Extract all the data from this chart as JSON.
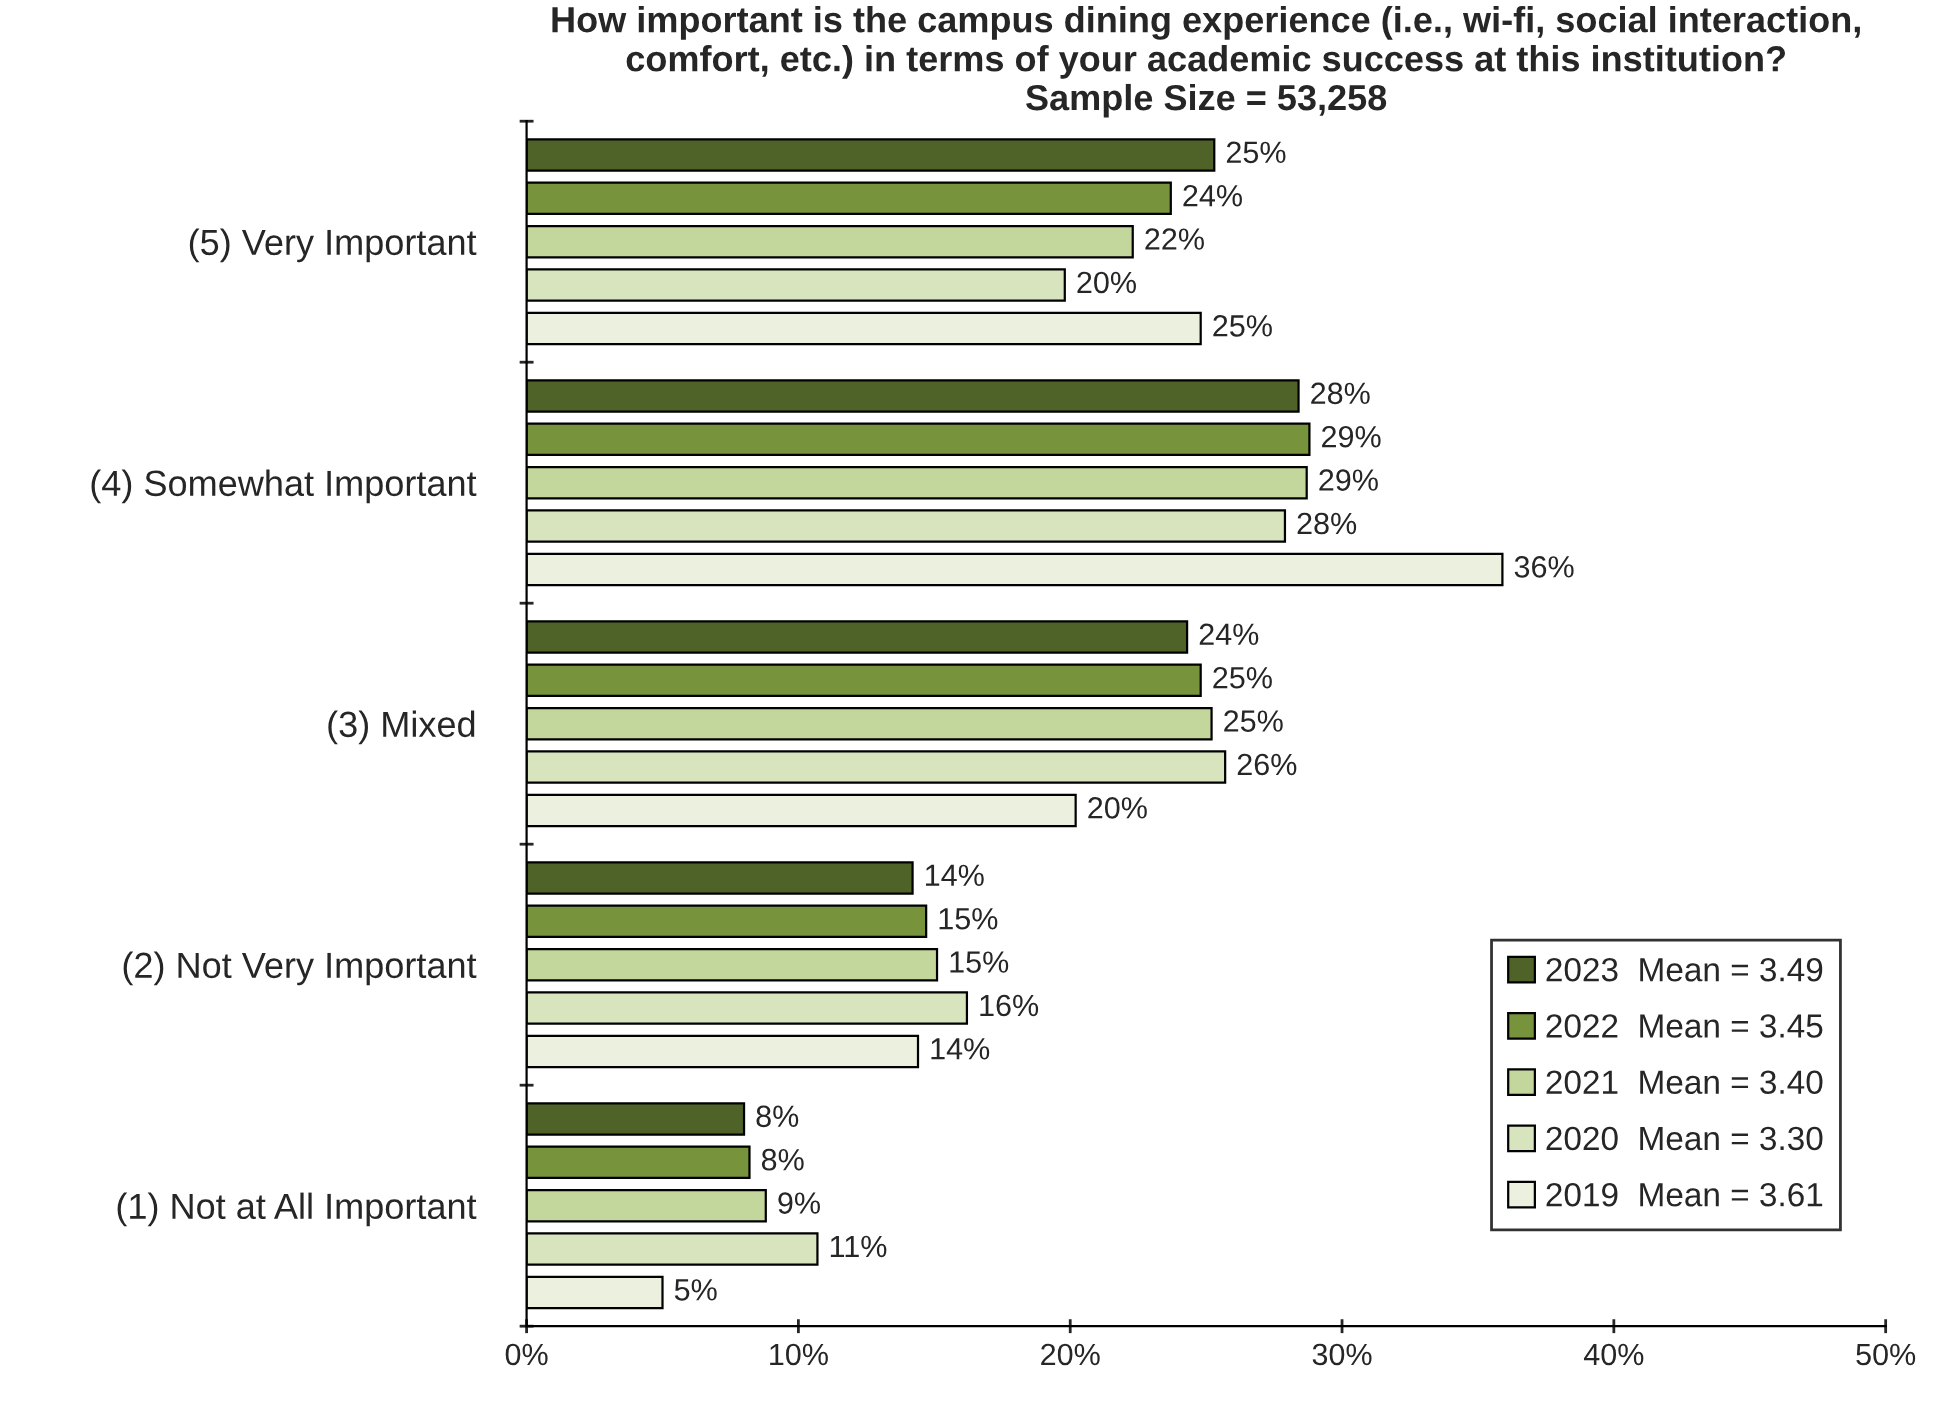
{
  "chart_data": {
    "type": "bar",
    "orientation": "horizontal",
    "title": "How important is the campus dining experience (i.e., wi-fi, social interaction,\ncomfort, etc.) in terms of your academic success at this institution?\nSample Size = 53,258",
    "categories": [
      "(5) Very Important",
      "(4) Somewhat Important",
      "(3) Mixed",
      "(2) Not Very Important",
      "(1) Not at All Important"
    ],
    "series": [
      {
        "name": "2023  Mean = 3.49",
        "color": "#4f6228",
        "values": [
          25.3,
          28.4,
          24.3,
          14.2,
          8.0
        ],
        "value_labels": [
          "25%",
          "28%",
          "24%",
          "14%",
          "8%"
        ]
      },
      {
        "name": "2022  Mean = 3.45",
        "color": "#77933c",
        "values": [
          23.7,
          28.8,
          24.8,
          14.7,
          8.2
        ],
        "value_labels": [
          "24%",
          "29%",
          "25%",
          "15%",
          "8%"
        ]
      },
      {
        "name": "2021  Mean = 3.40",
        "color": "#c3d69b",
        "values": [
          22.3,
          28.7,
          25.2,
          15.1,
          8.8
        ],
        "value_labels": [
          "22%",
          "29%",
          "25%",
          "15%",
          "9%"
        ]
      },
      {
        "name": "2020  Mean = 3.30",
        "color": "#d7e4bd",
        "values": [
          19.8,
          27.9,
          25.7,
          16.2,
          10.7
        ],
        "value_labels": [
          "20%",
          "28%",
          "26%",
          "16%",
          "11%"
        ]
      },
      {
        "name": "2019  Mean = 3.61",
        "color": "#ebf1de",
        "values": [
          24.8,
          35.9,
          20.2,
          14.4,
          5.0
        ],
        "value_labels": [
          "25%",
          "36%",
          "20%",
          "14%",
          "5%"
        ]
      }
    ],
    "xlim": [
      0,
      50
    ],
    "xticks": [
      {
        "value": 0,
        "label": "0%"
      },
      {
        "value": 10,
        "label": "10%"
      },
      {
        "value": 20,
        "label": "20%"
      },
      {
        "value": 30,
        "label": "30%"
      },
      {
        "value": 40,
        "label": "40%"
      },
      {
        "value": 50,
        "label": "50%"
      }
    ],
    "grid": false,
    "legend": "bottom right"
  }
}
